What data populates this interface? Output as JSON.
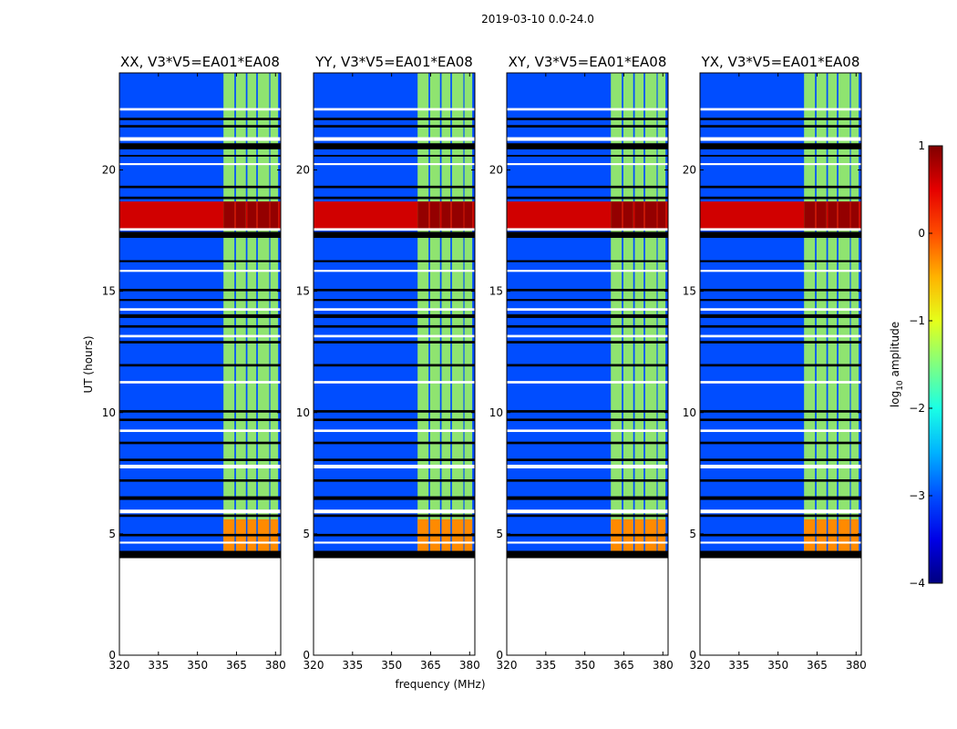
{
  "chart_data": {
    "type": "heatmap",
    "suptitle": "2019-03-10 0.0-24.0",
    "xlabel": "frequency (MHz)",
    "ylabel": "UT (hours)",
    "xlim": [
      320,
      382
    ],
    "ylim": [
      0,
      24
    ],
    "xticks": [
      320,
      335,
      350,
      365,
      380
    ],
    "yticks": [
      0,
      5,
      10,
      15,
      20
    ],
    "colormap": "jet",
    "colorbar": {
      "label": "log10 amplitude",
      "label_main": "log",
      "label_sub": "10",
      "label_rest": " amplitude",
      "range": [
        -4,
        1
      ],
      "ticks": [
        1,
        0,
        -1,
        -2,
        -3,
        -4
      ],
      "tick_labels": [
        "1",
        "0",
        "−1",
        "−2",
        "−3",
        "−4"
      ]
    },
    "data_start_hour": 4.0,
    "baseline_log_amplitude": -3.0,
    "flagged_hours": [
      [
        22.45,
        22.55
      ],
      [
        22.05,
        22.15
      ],
      [
        21.75,
        21.85
      ],
      [
        21.2,
        21.35
      ],
      [
        20.85,
        21.1
      ],
      [
        20.55,
        20.62
      ],
      [
        20.2,
        20.28
      ],
      [
        19.25,
        19.35
      ],
      [
        18.8,
        18.9
      ],
      [
        17.5,
        17.6
      ],
      [
        17.2,
        17.45
      ],
      [
        16.2,
        16.28
      ],
      [
        15.8,
        15.88
      ],
      [
        15.0,
        15.1
      ],
      [
        14.6,
        14.68
      ],
      [
        14.2,
        14.3
      ],
      [
        13.9,
        14.05
      ],
      [
        13.5,
        13.6
      ],
      [
        13.1,
        13.2
      ],
      [
        12.85,
        12.95
      ],
      [
        11.9,
        12.0
      ],
      [
        11.2,
        11.3
      ],
      [
        10.0,
        10.1
      ],
      [
        9.65,
        9.75
      ],
      [
        9.2,
        9.3
      ],
      [
        8.7,
        8.8
      ],
      [
        8.0,
        8.1
      ],
      [
        7.7,
        7.85
      ],
      [
        7.15,
        7.25
      ],
      [
        6.4,
        6.55
      ],
      [
        5.85,
        6.0
      ],
      [
        5.7,
        5.8
      ],
      [
        4.9,
        5.0
      ],
      [
        4.6,
        4.68
      ],
      [
        4.2,
        4.3
      ]
    ],
    "rfi_channels_mhz": [
      {
        "start": 360,
        "end": 364.2
      },
      {
        "start": 364.8,
        "end": 368.6
      },
      {
        "start": 369.2,
        "end": 372.6
      },
      {
        "start": 373.2,
        "end": 377.6
      },
      {
        "start": 378.0,
        "end": 381.0
      }
    ],
    "rfi_log_amplitude": -1.3,
    "rfi_peak_log_amplitude": -0.3,
    "broadband_event": {
      "start_hour": 17.5,
      "end_hour": 18.7,
      "log_amplitude": 0.6,
      "rfi_log_amplitude": 0.9
    },
    "panels": [
      {
        "title": "XX, V3*V5=EA01*EA08"
      },
      {
        "title": "YY, V3*V5=EA01*EA08"
      },
      {
        "title": "XY, V3*V5=EA01*EA08"
      },
      {
        "title": "YX, V3*V5=EA01*EA08"
      }
    ]
  }
}
